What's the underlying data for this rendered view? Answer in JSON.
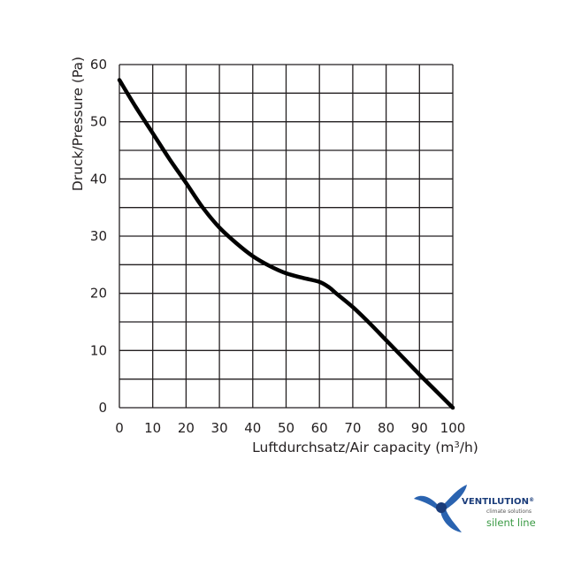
{
  "chart_data": {
    "type": "line",
    "xlabel_main": "Luftdurchsatz/Air capacity (m",
    "xlabel_sup": "3",
    "xlabel_end": "/h)",
    "ylabel": "Druck/Pressure (Pa)",
    "xlim": [
      0,
      100
    ],
    "ylim": [
      0,
      60
    ],
    "x_ticks": [
      0,
      10,
      20,
      30,
      40,
      50,
      60,
      70,
      80,
      90,
      100
    ],
    "y_ticks": [
      0,
      10,
      20,
      30,
      40,
      50,
      60
    ],
    "grid": true,
    "series": [
      {
        "color": "#000000",
        "x": [
          0,
          5,
          10,
          15,
          20,
          25,
          30,
          35,
          40,
          45,
          50,
          55,
          60,
          63,
          65,
          70,
          75,
          80,
          85,
          90,
          95,
          100
        ],
        "y": [
          57.3,
          52.5,
          48,
          43.5,
          39.3,
          35,
          31.5,
          28.8,
          26.5,
          24.8,
          23.5,
          22.7,
          22,
          21,
          20,
          17.6,
          14.8,
          11.8,
          8.8,
          5.8,
          2.9,
          0
        ]
      }
    ]
  },
  "logo": {
    "name": "VENTILUTION",
    "reg": "®",
    "tagline": "climate solutions",
    "line": "silent line",
    "colors": {
      "blade_blue": "#2a63b0",
      "hub_dark": "#1a3c7a",
      "green": "#3a9a44"
    }
  }
}
